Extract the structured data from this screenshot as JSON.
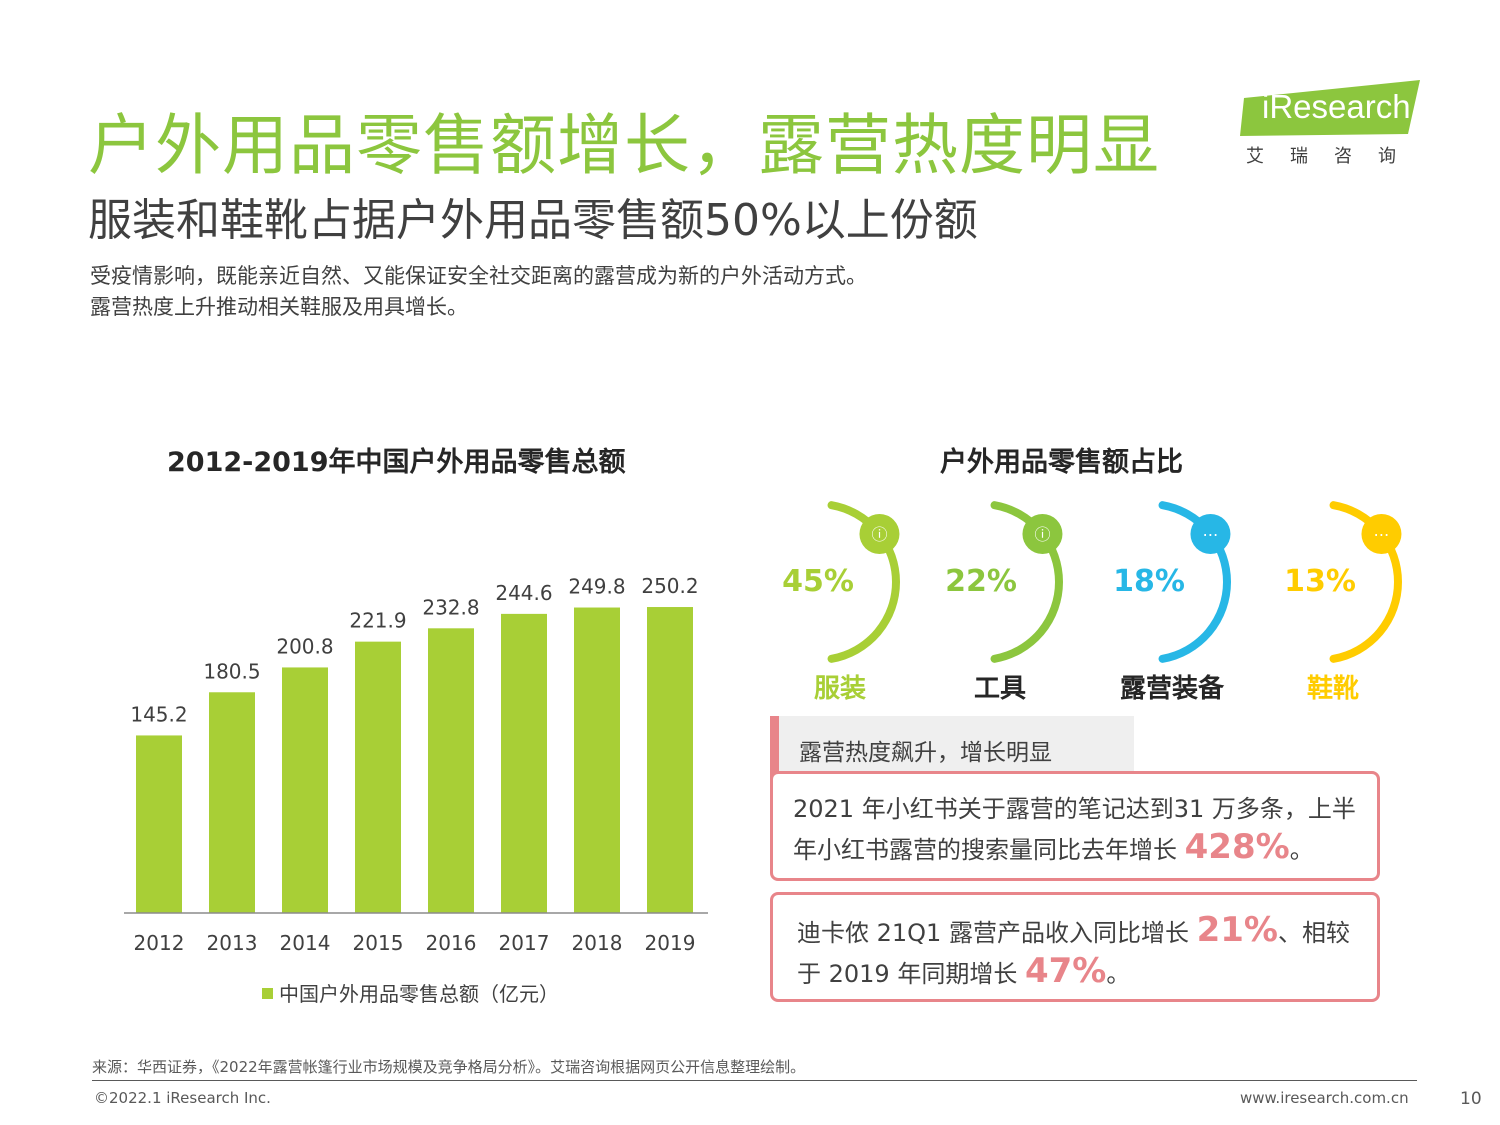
{
  "header": {
    "title": "户外用品零售额增长，露营热度明显",
    "subtitle": "服装和鞋靴占据户外用品零售额50%以上份额",
    "desc_lines": [
      "受疫情影响，既能亲近自然、又能保证安全社交距离的露营成为新的户外活动方式。",
      "露营热度上升推动相关鞋服及用具增长。"
    ]
  },
  "logo": {
    "text": "iResearch",
    "cn": "艾瑞咨询"
  },
  "bar_section": {
    "title": "2012-2019年中国户外用品零售总额"
  },
  "share_section": {
    "title": "户外用品零售额占比"
  },
  "chart_data": [
    {
      "type": "bar",
      "title": "2012-2019年中国户外用品零售总额",
      "categories": [
        "2012",
        "2013",
        "2014",
        "2015",
        "2016",
        "2017",
        "2018",
        "2019"
      ],
      "series": [
        {
          "name": "中国户外用品零售总额（亿元）",
          "values": [
            145.2,
            180.5,
            200.8,
            221.9,
            232.8,
            244.6,
            249.8,
            250.2
          ]
        }
      ],
      "data_labels": [
        "145.2",
        "180.5",
        "200.8",
        "221.9",
        "232.8",
        "244.6",
        "249.8",
        "250.2"
      ],
      "ylim": [
        0,
        290
      ],
      "grid": false,
      "legend": "bottom",
      "color": "#a8cf36"
    },
    {
      "type": "pie",
      "title": "户外用品零售额占比",
      "categories": [
        "服装",
        "工具",
        "露营装备",
        "鞋靴"
      ],
      "values": [
        45,
        22,
        18,
        13
      ],
      "labels": [
        "45%",
        "22%",
        "18%",
        "13%"
      ],
      "colors": [
        "#a8cf36",
        "#8cc63e",
        "#27b7e6",
        "#ffcc00"
      ],
      "icons": [
        "info-icon",
        "info-icon",
        "chat-icon",
        "chat-icon"
      ]
    }
  ],
  "notes": {
    "tab": "露营热度飙升，增长明显",
    "box1": {
      "text1": "2021 年小红书关于露营的笔记达到31 万多条，上半年小红书露营的搜索量同比去年增长 ",
      "highlight": "428%",
      "end": "。"
    },
    "box2": {
      "text1": "迪卡侬 21Q1 露营产品收入同比增长 ",
      "highlight1": "21%",
      "text2": "、相较于 2019 年同期增长 ",
      "highlight2": "47%",
      "end": "。"
    }
  },
  "footer": {
    "source": "来源：华西证券，《2022年露营帐篷行业市场规模及竞争格局分析》。艾瑞咨询根据网页公开信息整理绘制。",
    "copyright": "©2022.1 iResearch Inc.",
    "website": "www.iresearch.com.cn",
    "page": "10"
  }
}
